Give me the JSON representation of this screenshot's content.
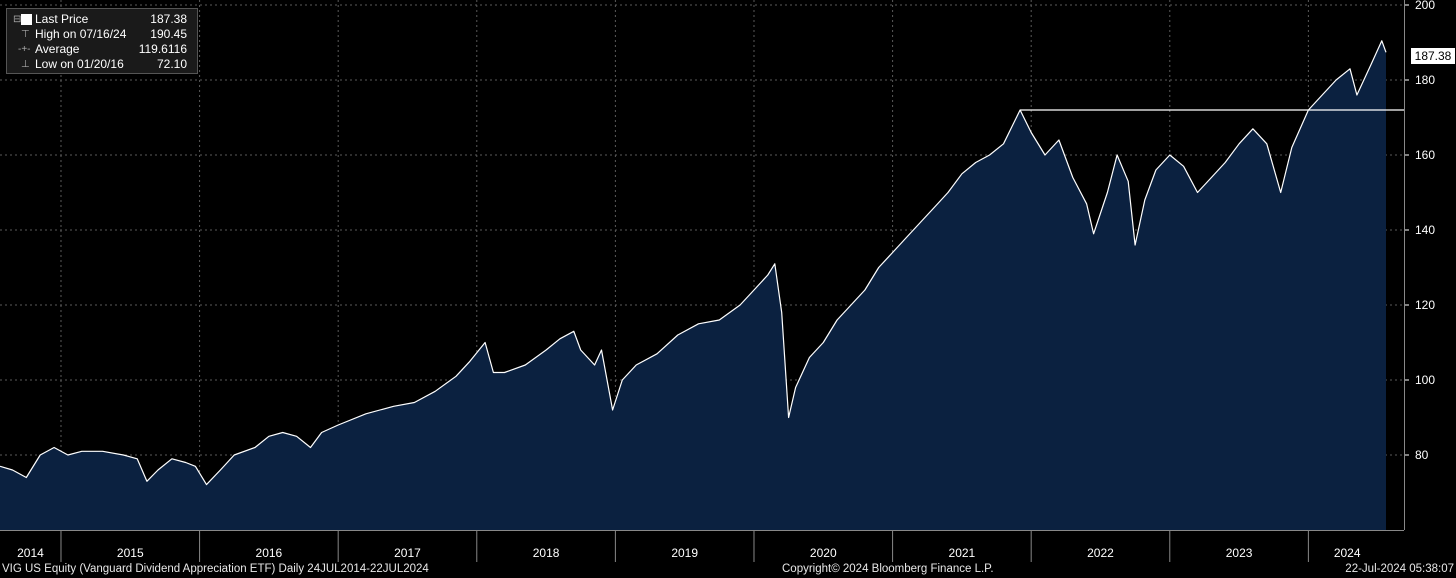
{
  "legend": {
    "last_price_label": "Last Price",
    "last_price_value": "187.38",
    "high_label": "High on 07/16/24",
    "high_value": "190.45",
    "average_label": "Average",
    "average_value": "119.6116",
    "low_label": "Low on 01/20/16",
    "low_value": "72.10"
  },
  "last_value_badge": "187.38",
  "footer": {
    "security": "VIG US Equity (Vanguard Dividend Appreciation ETF)  Daily 24JUL2014-22JUL2024",
    "copyright": "Copyright© 2024 Bloomberg Finance L.P.",
    "timestamp": "22-Jul-2024 05:38:07"
  },
  "colors": {
    "background": "#000000",
    "area_fill": "#0b2140",
    "line": "#ffffff",
    "grid": "#5a5a5a"
  },
  "chart_data": {
    "type": "area",
    "title": "",
    "xlabel": "",
    "ylabel": "",
    "ylim": [
      60,
      200
    ],
    "xlim": [
      2014.56,
      2024.56
    ],
    "y_ticks": [
      80,
      100,
      120,
      140,
      160,
      180,
      200
    ],
    "x_tick_labels": [
      "2014",
      "2015",
      "2016",
      "2017",
      "2018",
      "2019",
      "2020",
      "2021",
      "2022",
      "2023",
      "2024"
    ],
    "grid": true,
    "legend_position": "top-left",
    "y_axis_position": "right",
    "reference_line": {
      "y": 172,
      "x_start": 2021.92,
      "x_end": 2024.56
    },
    "series": [
      {
        "values": [
          [
            2014.56,
            77
          ],
          [
            2014.65,
            76
          ],
          [
            2014.75,
            74
          ],
          [
            2014.85,
            80
          ],
          [
            2014.95,
            82
          ],
          [
            2015.05,
            80
          ],
          [
            2015.15,
            81
          ],
          [
            2015.3,
            81
          ],
          [
            2015.45,
            80
          ],
          [
            2015.55,
            79
          ],
          [
            2015.62,
            73
          ],
          [
            2015.7,
            76
          ],
          [
            2015.8,
            79
          ],
          [
            2015.9,
            78
          ],
          [
            2015.97,
            77
          ],
          [
            2016.05,
            72.1
          ],
          [
            2016.15,
            76
          ],
          [
            2016.25,
            80
          ],
          [
            2016.4,
            82
          ],
          [
            2016.5,
            85
          ],
          [
            2016.6,
            86
          ],
          [
            2016.7,
            85
          ],
          [
            2016.8,
            82
          ],
          [
            2016.88,
            86
          ],
          [
            2017.0,
            88
          ],
          [
            2017.2,
            91
          ],
          [
            2017.4,
            93
          ],
          [
            2017.55,
            94
          ],
          [
            2017.7,
            97
          ],
          [
            2017.85,
            101
          ],
          [
            2017.95,
            105
          ],
          [
            2018.06,
            110
          ],
          [
            2018.12,
            102
          ],
          [
            2018.2,
            102
          ],
          [
            2018.35,
            104
          ],
          [
            2018.5,
            108
          ],
          [
            2018.6,
            111
          ],
          [
            2018.7,
            113
          ],
          [
            2018.75,
            108
          ],
          [
            2018.85,
            104
          ],
          [
            2018.9,
            108
          ],
          [
            2018.98,
            92
          ],
          [
            2019.05,
            100
          ],
          [
            2019.15,
            104
          ],
          [
            2019.3,
            107
          ],
          [
            2019.45,
            112
          ],
          [
            2019.6,
            115
          ],
          [
            2019.75,
            116
          ],
          [
            2019.9,
            120
          ],
          [
            2020.0,
            124
          ],
          [
            2020.1,
            128
          ],
          [
            2020.15,
            131
          ],
          [
            2020.2,
            118
          ],
          [
            2020.25,
            90
          ],
          [
            2020.3,
            98
          ],
          [
            2020.4,
            106
          ],
          [
            2020.5,
            110
          ],
          [
            2020.6,
            116
          ],
          [
            2020.7,
            120
          ],
          [
            2020.8,
            124
          ],
          [
            2020.9,
            130
          ],
          [
            2021.0,
            134
          ],
          [
            2021.1,
            138
          ],
          [
            2021.2,
            142
          ],
          [
            2021.3,
            146
          ],
          [
            2021.4,
            150
          ],
          [
            2021.5,
            155
          ],
          [
            2021.6,
            158
          ],
          [
            2021.7,
            160
          ],
          [
            2021.8,
            163
          ],
          [
            2021.92,
            172
          ],
          [
            2022.0,
            166
          ],
          [
            2022.1,
            160
          ],
          [
            2022.2,
            164
          ],
          [
            2022.3,
            154
          ],
          [
            2022.4,
            147
          ],
          [
            2022.45,
            139
          ],
          [
            2022.55,
            150
          ],
          [
            2022.62,
            160
          ],
          [
            2022.7,
            153
          ],
          [
            2022.75,
            136
          ],
          [
            2022.82,
            148
          ],
          [
            2022.9,
            156
          ],
          [
            2023.0,
            160
          ],
          [
            2023.1,
            157
          ],
          [
            2023.2,
            150
          ],
          [
            2023.3,
            154
          ],
          [
            2023.4,
            158
          ],
          [
            2023.5,
            163
          ],
          [
            2023.6,
            167
          ],
          [
            2023.7,
            163
          ],
          [
            2023.8,
            150
          ],
          [
            2023.88,
            162
          ],
          [
            2024.0,
            172
          ],
          [
            2024.1,
            176
          ],
          [
            2024.2,
            180
          ],
          [
            2024.3,
            183
          ],
          [
            2024.35,
            176
          ],
          [
            2024.45,
            184
          ],
          [
            2024.53,
            190.45
          ],
          [
            2024.56,
            187.38
          ]
        ]
      }
    ]
  }
}
